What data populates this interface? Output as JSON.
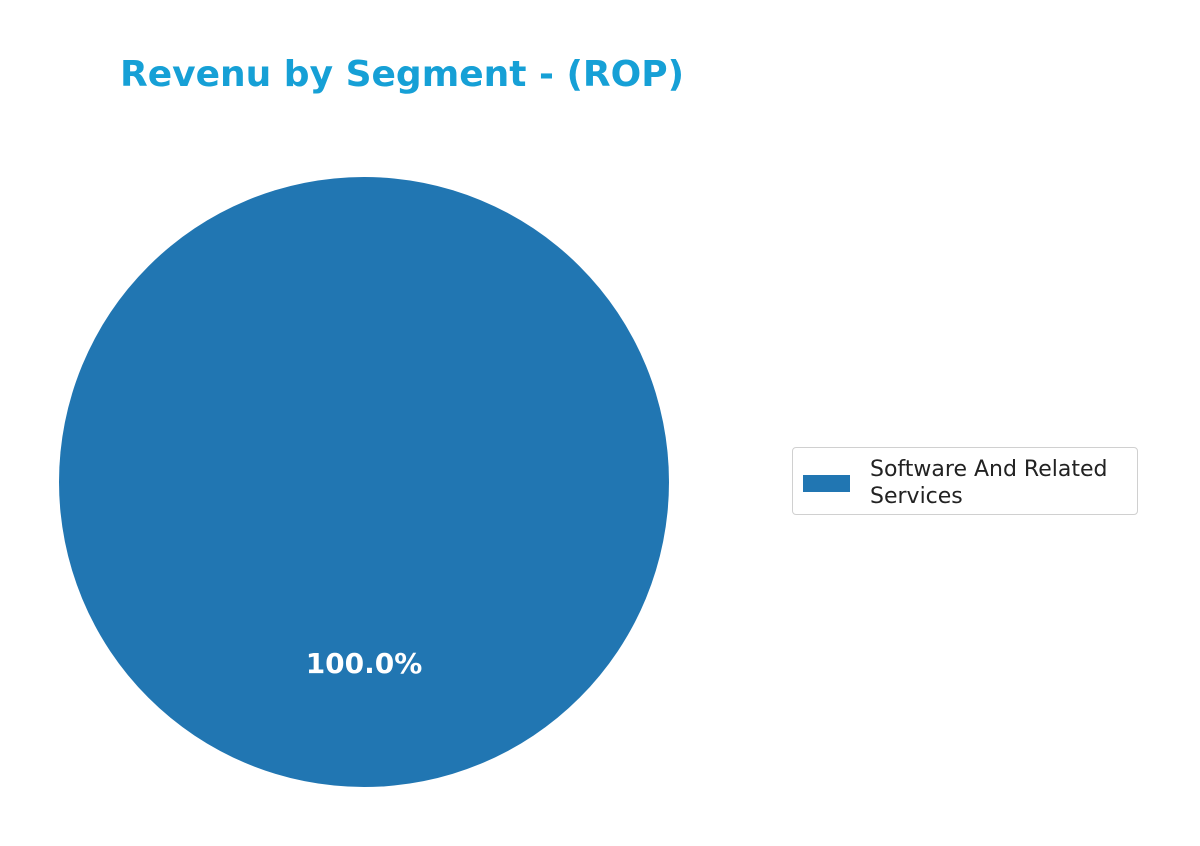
{
  "chart_data": {
    "type": "pie",
    "title": "Revenu by Segment - (ROP)",
    "categories": [
      "Software And Related Services"
    ],
    "values": [
      100
    ],
    "value_labels": [
      "100.0%"
    ],
    "colors": [
      "#2176b2"
    ],
    "legend": "right"
  }
}
